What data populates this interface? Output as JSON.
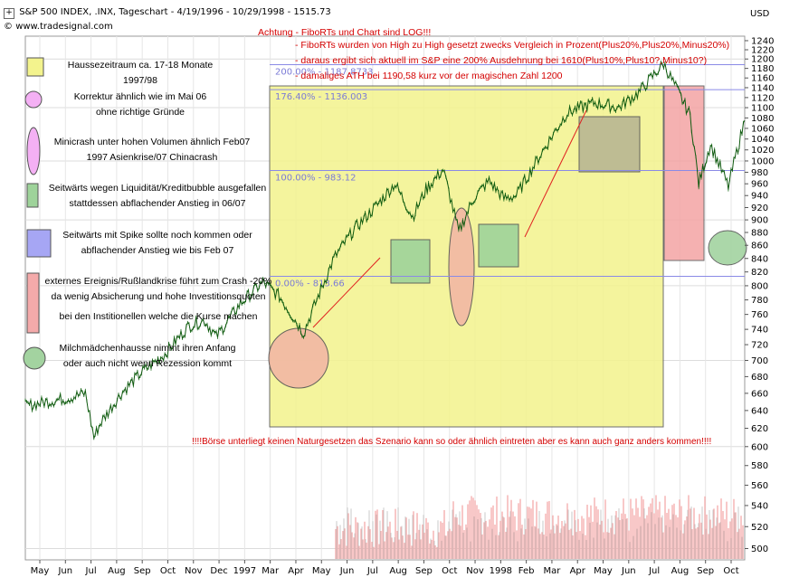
{
  "header": {
    "title": "S&P 500 INDEX, .INX, Tageschart - 4/19/1996 - 10/29/1998 - 1515.73",
    "website": "www.tradesignal.com",
    "currency": "USD"
  },
  "notes": {
    "line1": "Achtung - FiboRTs und Chart sind LOG!!!",
    "line2": "- FiboRTs wurden von High zu High gesetzt zwecks Vergleich in Prozent(Plus20%,Plus20%,Minus20%)",
    "line3": "- daraus ergibt sich aktuell im S&P eine 200% Ausdehnung bei 1610(Plus10%,Plus10?,Minus10?)",
    "line4": "- damaliges ATH bei 1190,58 kurz vor der magischen  Zahl 1200",
    "warning": "!!!!Börse unterliegt keinen Naturgesetzen das Szenario kann so oder ähnlich eintreten aber es kann auch ganz anders kommen!!!!"
  },
  "legend": [
    {
      "shape": "yellow-rect",
      "color": "#f3f38d",
      "lines": [
        "Haussezeitraum ca. 17-18 Monate 1997/98"
      ]
    },
    {
      "shape": "pink-circle",
      "color": "#f4b0f4",
      "lines": [
        "Korrektur ähnlich wie im Mai 06",
        "ohne richtige Gründe"
      ]
    },
    {
      "shape": "pink-ellipse",
      "color": "#f4b0f4",
      "lines": [
        "Minicrash unter hohen Volumen ähnlich Feb07",
        "1997 Asienkrise/07 Chinacrash"
      ]
    },
    {
      "shape": "green-rect",
      "color": "#9ed39a",
      "lines": [
        "Seitwärts wegen Liquidität/Kreditbubble ausgefallen",
        "stattdessen abflachender Anstieg in 06/07"
      ]
    },
    {
      "shape": "blue-rect",
      "color": "#a6a6f4",
      "lines": [
        "Seitwärts mit Spike sollte noch kommen oder",
        "abflachender Anstieg wie bis Feb 07"
      ]
    },
    {
      "shape": "red-rect",
      "color": "#f4aaaa",
      "lines": [
        "externes Ereignis/Rußlandkrise führt zum Crash -20%",
        "da wenig Absicherung und hohe Investitionsquoten",
        "bei den Institionellen welche die Kurse machen"
      ]
    },
    {
      "shape": "green-circle",
      "color": "#a3d3a0",
      "lines": [
        "Milchmädchenhausse nimmt ihren Anfang",
        "oder auch nicht wenn Rezession kommt"
      ]
    }
  ],
  "chart_data": {
    "type": "line",
    "title": "S&P 500 INDEX, .INX, Tageschart - 4/19/1996 - 10/29/1998 - 1515.73",
    "y_scale": "log",
    "ylim": [
      490,
      1260
    ],
    "yticks": [
      500,
      520,
      540,
      560,
      580,
      600,
      620,
      640,
      660,
      680,
      700,
      720,
      740,
      760,
      780,
      800,
      820,
      840,
      860,
      880,
      900,
      920,
      940,
      960,
      980,
      1000,
      1020,
      1040,
      1060,
      1080,
      1100,
      1120,
      1140,
      1160,
      1180,
      1200,
      1220,
      1240
    ],
    "xticks": [
      "May",
      "Jun",
      "Jul",
      "Aug",
      "Sep",
      "Oct",
      "Nov",
      "Dec",
      "1997",
      "Mar",
      "Apr",
      "May",
      "Jun",
      "Jul",
      "Aug",
      "Sep",
      "Oct",
      "Nov",
      "1998",
      "Feb",
      "Mar",
      "Apr",
      "May",
      "Jun",
      "Jul",
      "Aug",
      "Sep",
      "Oct"
    ],
    "fibo_levels": [
      {
        "label": "200.00% - 1187.8733",
        "value": 1187.87
      },
      {
        "label": "176.40% - 1136.003",
        "value": 1136.0
      },
      {
        "label": "100.00% - 983.12",
        "value": 983.12
      },
      {
        "label": "0.00% - 813.66",
        "value": 813.66
      }
    ],
    "series": [
      {
        "key": "price",
        "x": [
          "1996-04-19",
          "1996-05-15",
          "1996-06-15",
          "1996-07-05",
          "1996-07-16",
          "1996-07-24",
          "1996-08-20",
          "1996-09-15",
          "1996-10-15",
          "1996-11-15",
          "1996-12-05",
          "1996-12-20",
          "1997-01-20",
          "1997-02-18",
          "1997-03-11",
          "1997-04-11",
          "1997-04-28",
          "1997-05-20",
          "1997-06-15",
          "1997-07-15",
          "1997-08-06",
          "1997-08-29",
          "1997-09-15",
          "1997-10-07",
          "1997-10-27",
          "1997-11-15",
          "1997-12-05",
          "1997-12-24",
          "1998-01-09",
          "1998-02-15",
          "1998-03-15",
          "1998-04-20",
          "1998-05-20",
          "1998-06-15",
          "1998-07-17",
          "1998-08-05",
          "1998-08-20",
          "1998-08-31",
          "1998-09-15",
          "1998-10-08",
          "1998-10-29"
        ],
        "values": [
          645,
          650,
          655,
          660,
          610,
          625,
          660,
          685,
          708,
          745,
          752,
          730,
          775,
          805,
          785,
          735,
          780,
          840,
          885,
          925,
          960,
          905,
          950,
          985,
          880,
          935,
          965,
          935,
          940,
          1025,
          1090,
          1110,
          1100,
          1130,
          1190,
          1130,
          1085,
          960,
          1030,
          955,
          1075
        ]
      }
    ],
    "volume_note": "Volumenbalken im unteren Bereich"
  }
}
